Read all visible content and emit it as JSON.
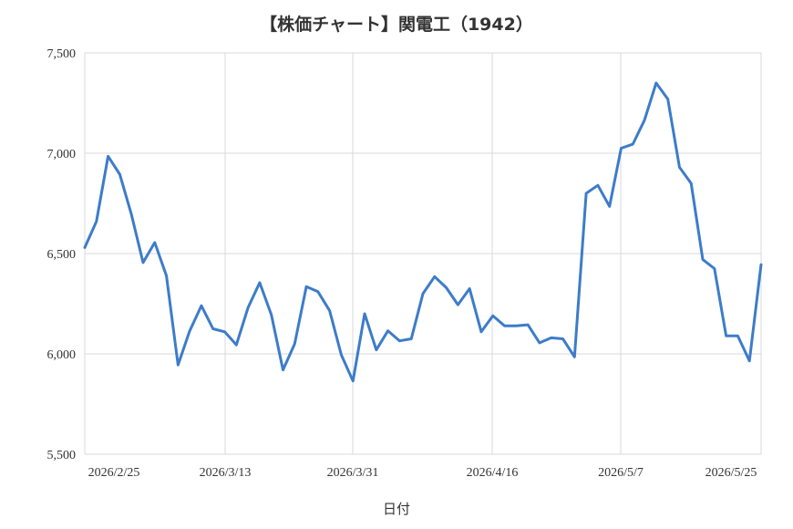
{
  "chart_data": {
    "type": "line",
    "title": "【株価チャート】関電工（1942）",
    "xlabel": "日付",
    "ylabel": "",
    "ylim": [
      5500,
      7500
    ],
    "yticks": [
      5500,
      6000,
      6500,
      7000,
      7500
    ],
    "ytick_labels": [
      "5,500",
      "6,000",
      "6,500",
      "7,000",
      "7,500"
    ],
    "xticks": [
      "2026/2/25",
      "2026/3/13",
      "2026/3/31",
      "2026/4/16",
      "2026/5/7",
      "2026/5/25"
    ],
    "grid": true,
    "legend": "none",
    "color": "#3d7cc9",
    "series": [
      {
        "values": [
          6530,
          6660,
          6985,
          6895,
          6695,
          6455,
          6555,
          6390,
          5945,
          6115,
          6240,
          6125,
          6110,
          6045,
          6230,
          6355,
          6195,
          5920,
          6050,
          6335,
          6310,
          6215,
          5995,
          5865,
          6200,
          6020,
          6115,
          6065,
          6075,
          6300,
          6385,
          6330,
          6245,
          6325,
          6110,
          6190,
          6140,
          6140,
          6145,
          6055,
          6080,
          6075,
          5985,
          6800,
          6840,
          6735,
          7025,
          7045,
          7165,
          7350,
          7270,
          6930,
          6850,
          6470,
          6425,
          6090,
          6090,
          5965,
          6445
        ]
      }
    ]
  }
}
